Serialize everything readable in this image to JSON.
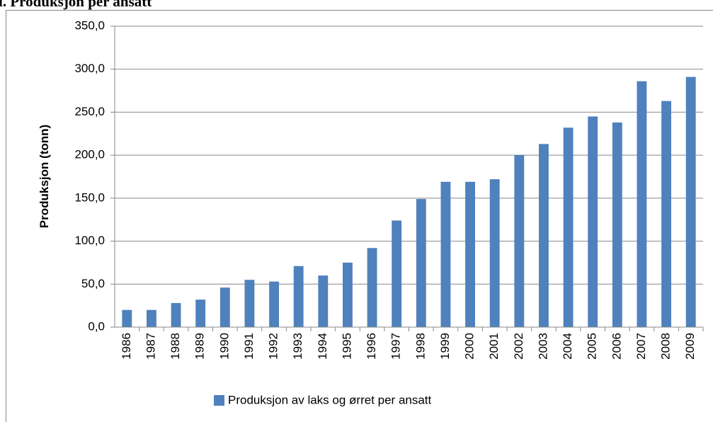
{
  "chart_data": {
    "type": "bar",
    "title": "i. Produksjon per ansatt",
    "y_label": "Produksjon (tonn)",
    "categories": [
      "1986",
      "1987",
      "1988",
      "1989",
      "1990",
      "1991",
      "1992",
      "1993",
      "1994",
      "1995",
      "1996",
      "1997",
      "1998",
      "1999",
      "2000",
      "2001",
      "2002",
      "2003",
      "2004",
      "2005",
      "2006",
      "2007",
      "2008",
      "2009"
    ],
    "series": [
      {
        "name": "Produksjon av laks og ørret per ansatt",
        "color": "#4f81bd",
        "values": [
          20,
          20,
          28,
          32,
          46,
          55,
          53,
          71,
          60,
          75,
          92,
          124,
          149,
          169,
          169,
          172,
          200,
          213,
          232,
          245,
          238,
          286,
          263,
          291
        ]
      }
    ],
    "ylim": [
      0,
      350
    ],
    "yticks": [
      {
        "value": 0,
        "label": "0,0"
      },
      {
        "value": 50,
        "label": "50,0"
      },
      {
        "value": 100,
        "label": "100,0"
      },
      {
        "value": 150,
        "label": "150,0"
      },
      {
        "value": 200,
        "label": "200,0"
      },
      {
        "value": 250,
        "label": "250,0"
      },
      {
        "value": 300,
        "label": "300,0"
      },
      {
        "value": 350,
        "label": "350,0"
      }
    ],
    "grid": true,
    "legend": "bottom"
  }
}
